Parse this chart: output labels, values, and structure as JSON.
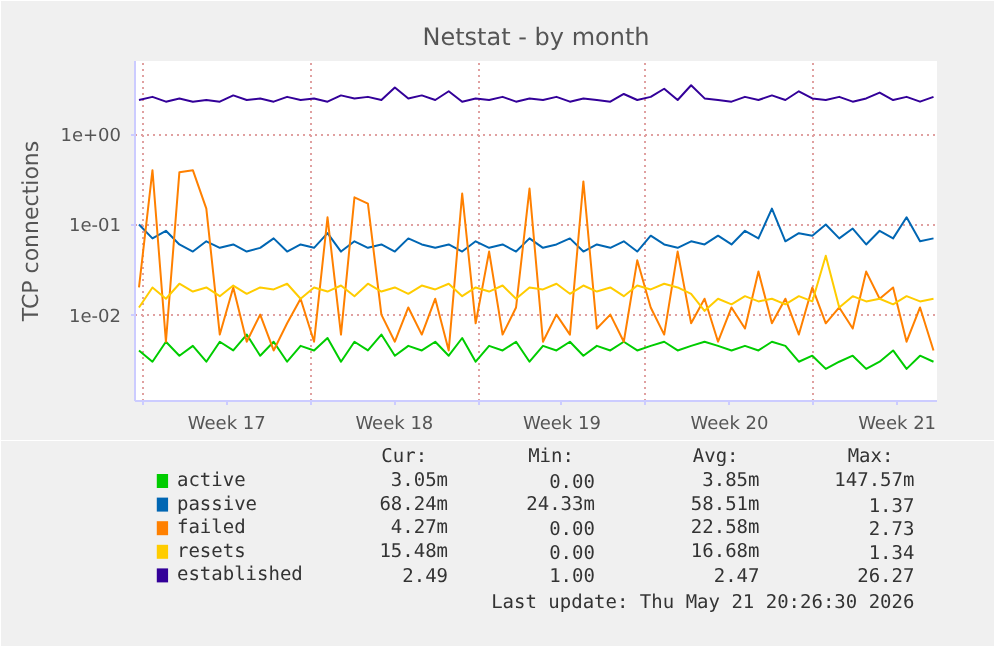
{
  "chart_data": {
    "type": "line",
    "title": "Netstat - by month",
    "ylabel": "TCP connections",
    "log": "y",
    "grid": true,
    "legend": "bottom",
    "line_style": "solid",
    "marker": "none",
    "xlim": [
      "2026-04-19T16:00",
      "2026-05-23T04:00"
    ],
    "ylim": [
      0.0011,
      6.5
    ],
    "xticks": [
      {
        "value": "2026-04-20",
        "label": null
      },
      {
        "value": "2026-04-23T12:00",
        "label": "Week 17"
      },
      {
        "value": "2026-04-27",
        "label": null
      },
      {
        "value": "2026-04-30T12:00",
        "label": "Week 18"
      },
      {
        "value": "2026-05-04",
        "label": null
      },
      {
        "value": "2026-05-07T12:00",
        "label": "Week 19"
      },
      {
        "value": "2026-05-11",
        "label": null
      },
      {
        "value": "2026-05-14T12:00",
        "label": "Week 20"
      },
      {
        "value": "2026-05-18",
        "label": null
      },
      {
        "value": "2026-05-21T12:00",
        "label": "Week 21"
      }
    ],
    "yticks": [
      {
        "value": 0.01,
        "label": "1e-02"
      },
      {
        "value": 0.1,
        "label": "1e-01"
      },
      {
        "value": 1,
        "label": "1e+00"
      }
    ],
    "x": [
      "2026-04-19T20:00",
      "2026-04-20T09:30",
      "2026-04-20T23:00",
      "2026-04-21T12:30",
      "2026-04-22T02:00",
      "2026-04-22T15:30",
      "2026-04-23T05:00",
      "2026-04-23T18:30",
      "2026-04-24T08:00",
      "2026-04-24T21:30",
      "2026-04-25T11:00",
      "2026-04-26T00:30",
      "2026-04-26T14:00",
      "2026-04-27T03:30",
      "2026-04-27T17:00",
      "2026-04-28T06:30",
      "2026-04-28T20:00",
      "2026-04-29T09:30",
      "2026-04-29T23:00",
      "2026-04-30T12:30",
      "2026-05-01T02:00",
      "2026-05-01T15:30",
      "2026-05-02T05:00",
      "2026-05-02T18:30",
      "2026-05-03T08:00",
      "2026-05-03T21:30",
      "2026-05-04T11:00",
      "2026-05-05T00:30",
      "2026-05-05T14:00",
      "2026-05-06T03:30",
      "2026-05-06T17:00",
      "2026-05-07T06:30",
      "2026-05-07T20:00",
      "2026-05-08T09:30",
      "2026-05-08T23:00",
      "2026-05-09T12:30",
      "2026-05-10T02:00",
      "2026-05-10T15:30",
      "2026-05-11T05:00",
      "2026-05-11T18:30",
      "2026-05-12T08:00",
      "2026-05-12T21:30",
      "2026-05-13T11:00",
      "2026-05-14T00:30",
      "2026-05-14T14:00",
      "2026-05-15T03:30",
      "2026-05-15T17:00",
      "2026-05-16T06:30",
      "2026-05-16T20:00",
      "2026-05-17T09:30",
      "2026-05-17T23:00",
      "2026-05-18T12:30",
      "2026-05-19T02:00",
      "2026-05-19T15:30",
      "2026-05-20T05:00",
      "2026-05-20T18:30",
      "2026-05-21T08:00",
      "2026-05-21T21:30",
      "2026-05-22T11:00",
      "2026-05-23T00:30"
    ],
    "series": [
      {
        "name": "active",
        "color": "#00cc00",
        "values": [
          0.004,
          0.003,
          0.005,
          0.0035,
          0.0045,
          0.003,
          0.005,
          0.004,
          0.006,
          0.0035,
          0.005,
          0.003,
          0.0045,
          0.004,
          0.0055,
          0.003,
          0.005,
          0.004,
          0.006,
          0.0035,
          0.0045,
          0.004,
          0.005,
          0.0035,
          0.0055,
          0.003,
          0.0045,
          0.004,
          0.005,
          0.003,
          0.0045,
          0.004,
          0.005,
          0.0035,
          0.0045,
          0.004,
          0.005,
          0.004,
          0.0045,
          0.005,
          0.004,
          0.0045,
          0.005,
          0.0045,
          0.004,
          0.0045,
          0.004,
          0.005,
          0.0045,
          0.003,
          0.0035,
          0.0025,
          0.003,
          0.0035,
          0.0025,
          0.003,
          0.004,
          0.0025,
          0.0035,
          0.003
        ]
      },
      {
        "name": "passive",
        "color": "#0066b3",
        "values": [
          0.1,
          0.07,
          0.085,
          0.06,
          0.05,
          0.065,
          0.055,
          0.06,
          0.05,
          0.055,
          0.07,
          0.05,
          0.06,
          0.055,
          0.08,
          0.05,
          0.065,
          0.055,
          0.06,
          0.05,
          0.07,
          0.06,
          0.055,
          0.06,
          0.05,
          0.065,
          0.055,
          0.06,
          0.05,
          0.07,
          0.055,
          0.06,
          0.07,
          0.05,
          0.06,
          0.055,
          0.065,
          0.05,
          0.075,
          0.06,
          0.055,
          0.065,
          0.06,
          0.075,
          0.06,
          0.085,
          0.07,
          0.15,
          0.065,
          0.08,
          0.075,
          0.1,
          0.07,
          0.09,
          0.06,
          0.085,
          0.07,
          0.12,
          0.065,
          0.07
        ]
      },
      {
        "name": "failed",
        "color": "#ff8000",
        "values": [
          0.02,
          0.4,
          0.005,
          0.38,
          0.4,
          0.15,
          0.006,
          0.02,
          0.005,
          0.01,
          0.004,
          0.008,
          0.015,
          0.005,
          0.12,
          0.006,
          0.2,
          0.17,
          0.01,
          0.005,
          0.012,
          0.006,
          0.015,
          0.004,
          0.22,
          0.008,
          0.05,
          0.006,
          0.012,
          0.25,
          0.005,
          0.01,
          0.006,
          0.3,
          0.007,
          0.01,
          0.005,
          0.04,
          0.012,
          0.006,
          0.05,
          0.008,
          0.015,
          0.005,
          0.012,
          0.007,
          0.03,
          0.008,
          0.015,
          0.006,
          0.02,
          0.008,
          0.012,
          0.007,
          0.03,
          0.015,
          0.02,
          0.005,
          0.012,
          0.004
        ]
      },
      {
        "name": "resets",
        "color": "#ffcc00",
        "values": [
          0.012,
          0.02,
          0.015,
          0.022,
          0.018,
          0.02,
          0.016,
          0.021,
          0.017,
          0.02,
          0.019,
          0.022,
          0.015,
          0.02,
          0.018,
          0.021,
          0.016,
          0.022,
          0.018,
          0.02,
          0.017,
          0.021,
          0.019,
          0.022,
          0.016,
          0.02,
          0.018,
          0.021,
          0.015,
          0.02,
          0.019,
          0.022,
          0.017,
          0.021,
          0.018,
          0.02,
          0.016,
          0.021,
          0.019,
          0.022,
          0.02,
          0.017,
          0.011,
          0.015,
          0.013,
          0.016,
          0.014,
          0.015,
          0.013,
          0.016,
          0.014,
          0.045,
          0.012,
          0.016,
          0.014,
          0.015,
          0.013,
          0.016,
          0.014,
          0.015
        ]
      },
      {
        "name": "established",
        "color": "#330099",
        "values": [
          2.4,
          2.6,
          2.3,
          2.5,
          2.3,
          2.4,
          2.3,
          2.7,
          2.4,
          2.5,
          2.3,
          2.6,
          2.4,
          2.5,
          2.3,
          2.7,
          2.5,
          2.6,
          2.4,
          3.3,
          2.5,
          2.7,
          2.4,
          3.0,
          2.3,
          2.5,
          2.4,
          2.6,
          2.3,
          2.5,
          2.4,
          2.6,
          2.3,
          2.5,
          2.4,
          2.3,
          2.8,
          2.4,
          2.6,
          3.2,
          2.4,
          3.5,
          2.5,
          2.4,
          2.3,
          2.6,
          2.4,
          2.7,
          2.4,
          3.0,
          2.5,
          2.4,
          2.6,
          2.3,
          2.5,
          2.9,
          2.4,
          2.6,
          2.3,
          2.6
        ]
      }
    ],
    "annotations": [
      "Cur:",
      "Min:",
      "Avg:",
      "Max:",
      "3.05m",
      "0.00",
      "3.85m",
      "147.57m",
      "68.24m",
      "24.33m",
      "58.51m",
      "1.37",
      "4.27m",
      "0.00",
      "22.58m",
      "2.73",
      "15.48m",
      "0.00",
      "16.68m",
      "1.34",
      "2.49",
      "1.00",
      "2.47",
      "26.27",
      "Last update: Thu May 21 20:26:30 2026"
    ]
  }
}
